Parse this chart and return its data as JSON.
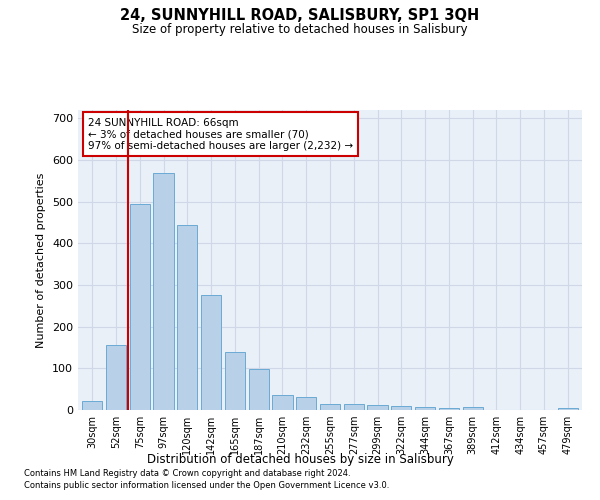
{
  "title": "24, SUNNYHILL ROAD, SALISBURY, SP1 3QH",
  "subtitle": "Size of property relative to detached houses in Salisbury",
  "xlabel": "Distribution of detached houses by size in Salisbury",
  "ylabel": "Number of detached properties",
  "footer1": "Contains HM Land Registry data © Crown copyright and database right 2024.",
  "footer2": "Contains public sector information licensed under the Open Government Licence v3.0.",
  "categories": [
    "30sqm",
    "52sqm",
    "75sqm",
    "97sqm",
    "120sqm",
    "142sqm",
    "165sqm",
    "187sqm",
    "210sqm",
    "232sqm",
    "255sqm",
    "277sqm",
    "299sqm",
    "322sqm",
    "344sqm",
    "367sqm",
    "389sqm",
    "412sqm",
    "434sqm",
    "457sqm",
    "479sqm"
  ],
  "values": [
    22,
    155,
    495,
    570,
    445,
    275,
    140,
    98,
    35,
    32,
    14,
    15,
    12,
    10,
    7,
    5,
    8,
    0,
    0,
    0,
    5
  ],
  "bar_color": "#b8d0e8",
  "bar_edge_color": "#6aaad4",
  "grid_color": "#d0d8e8",
  "background_color": "#eaf0f8",
  "vline_x": 1.5,
  "vline_color": "#cc0000",
  "annotation_text": "24 SUNNYHILL ROAD: 66sqm\n← 3% of detached houses are smaller (70)\n97% of semi-detached houses are larger (2,232) →",
  "annotation_box_color": "#cc0000",
  "ylim": [
    0,
    720
  ],
  "yticks": [
    0,
    100,
    200,
    300,
    400,
    500,
    600,
    700
  ]
}
